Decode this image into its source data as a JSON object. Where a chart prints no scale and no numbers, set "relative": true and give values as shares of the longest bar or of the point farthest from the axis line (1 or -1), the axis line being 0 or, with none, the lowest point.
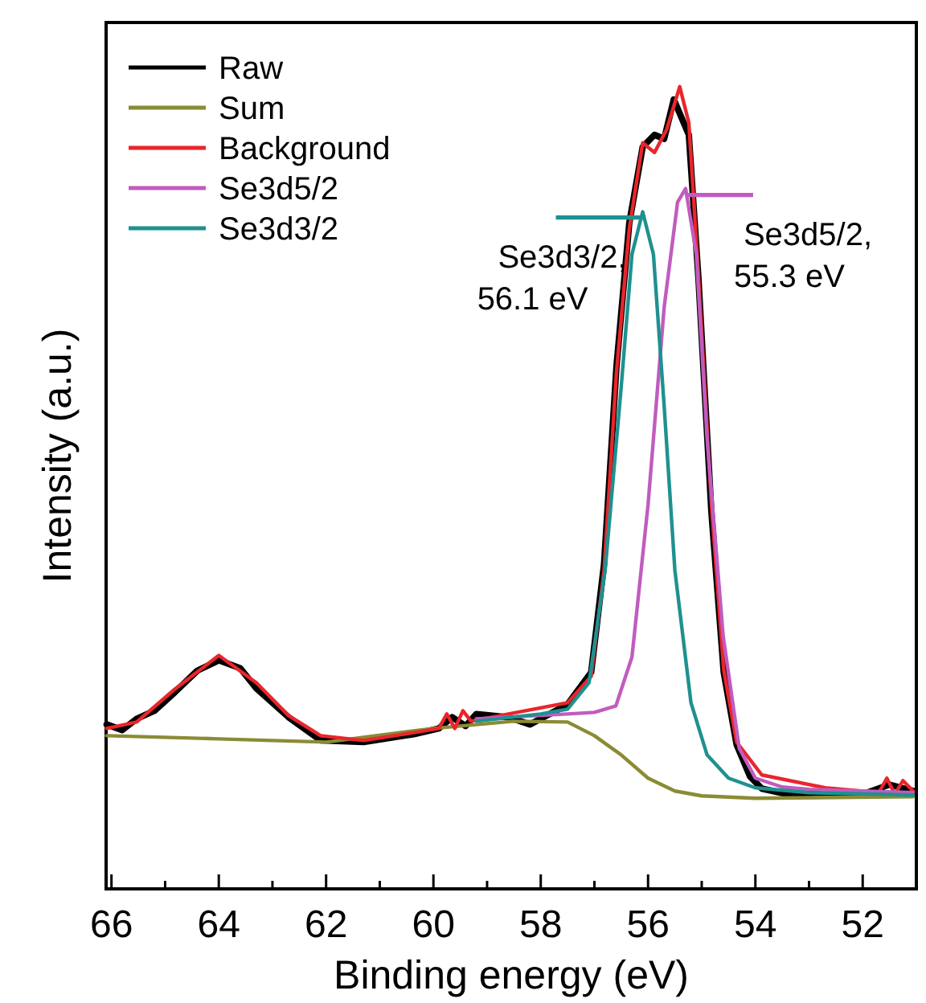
{
  "chart_data": {
    "type": "line",
    "relative": true,
    "xlabel": "Binding energy (eV)",
    "ylabel": "Intensity (a.u.)",
    "xlim": [
      66.1,
      51
    ],
    "xticks": [
      66,
      {
        "value": 65,
        "label": null
      },
      64,
      {
        "value": 63,
        "label": null
      },
      62,
      {
        "value": 61,
        "label": null
      },
      60,
      {
        "value": 59,
        "label": null
      },
      58,
      {
        "value": 57,
        "label": null
      },
      56,
      {
        "value": 55,
        "label": null
      },
      54,
      {
        "value": 53,
        "label": null
      },
      52
    ],
    "legend": "top left",
    "grid": false,
    "line_style": "solid",
    "marker": "none",
    "series": [
      {
        "name": "Raw",
        "color": "#000000",
        "x": [
          66.09,
          65.8,
          65.53,
          65.2,
          64.82,
          64.4,
          64.0,
          63.6,
          63.3,
          62.7,
          62.1,
          61.3,
          60.35,
          59.9,
          59.65,
          59.4,
          59.2,
          58.6,
          58.2,
          57.5,
          57.06,
          56.82,
          56.59,
          56.35,
          56.1,
          55.88,
          55.7,
          55.52,
          55.24,
          55.06,
          54.82,
          54.59,
          54.35,
          54.1,
          53.88,
          53.4,
          52.7,
          52.0,
          51.5,
          51.06
        ],
        "values": [
          0.205,
          0.198,
          0.212,
          0.222,
          0.245,
          0.272,
          0.285,
          0.275,
          0.25,
          0.214,
          0.185,
          0.183,
          0.193,
          0.2,
          0.214,
          0.203,
          0.218,
          0.214,
          0.205,
          0.23,
          0.27,
          0.405,
          0.65,
          0.83,
          0.925,
          0.94,
          0.935,
          0.984,
          0.94,
          0.76,
          0.47,
          0.27,
          0.18,
          0.14,
          0.125,
          0.118,
          0.12,
          0.118,
          0.13,
          0.122
        ]
      },
      {
        "name": "Sum",
        "color": "#8b8b35",
        "x": [
          66.09,
          64,
          62,
          60,
          58.5,
          57.5,
          57,
          56.5,
          56,
          55.5,
          55,
          54,
          52.5,
          51.06
        ],
        "values": [
          0.191,
          0.187,
          0.183,
          0.2,
          0.209,
          0.208,
          0.191,
          0.167,
          0.138,
          0.122,
          0.116,
          0.113,
          0.114,
          0.115
        ]
      },
      {
        "name": "Background",
        "color": "#e8262c",
        "x": [
          66.09,
          65.53,
          64.82,
          64.0,
          63.3,
          62.7,
          62.1,
          61.3,
          60.35,
          59.9,
          59.75,
          59.6,
          59.45,
          59.3,
          58.6,
          57.5,
          57.06,
          56.82,
          56.59,
          56.35,
          56.1,
          55.88,
          55.65,
          55.41,
          55.24,
          55.06,
          54.82,
          54.59,
          54.35,
          53.88,
          52.7,
          51.7,
          51.55,
          51.4,
          51.25,
          51.06
        ],
        "values": [
          0.2,
          0.208,
          0.249,
          0.291,
          0.257,
          0.216,
          0.191,
          0.185,
          0.195,
          0.2,
          0.218,
          0.2,
          0.222,
          0.209,
          0.218,
          0.232,
          0.265,
          0.397,
          0.643,
          0.823,
          0.93,
          0.918,
          0.947,
          1.0,
          0.955,
          0.765,
          0.479,
          0.273,
          0.183,
          0.142,
          0.126,
          0.12,
          0.138,
          0.118,
          0.135,
          0.122
        ]
      },
      {
        "name": "Se3d5/2",
        "color": "#c05cbf",
        "x": [
          59.2,
          57.5,
          57,
          56.6,
          56.3,
          56,
          55.7,
          55.45,
          55.3,
          55.1,
          54.9,
          54.6,
          54.3,
          54,
          53.5,
          53,
          51.06
        ],
        "values": [
          0.212,
          0.218,
          0.22,
          0.228,
          0.289,
          0.479,
          0.725,
          0.856,
          0.873,
          0.791,
          0.561,
          0.315,
          0.175,
          0.138,
          0.127,
          0.124,
          0.12
        ]
      },
      {
        "name": "Se3d3/2",
        "color": "#1e9190",
        "x": [
          59.2,
          58,
          57.5,
          57.1,
          56.8,
          56.5,
          56.3,
          56.1,
          55.9,
          55.7,
          55.5,
          55.2,
          54.9,
          54.5,
          54,
          53,
          51.06
        ],
        "values": [
          0.209,
          0.218,
          0.224,
          0.257,
          0.397,
          0.626,
          0.791,
          0.844,
          0.791,
          0.602,
          0.397,
          0.232,
          0.167,
          0.138,
          0.126,
          0.12,
          0.117
        ]
      }
    ],
    "annotations": [
      {
        "text": "Se3d5/2, 55.3 eV",
        "x": 55.3,
        "y": 0.865
      },
      {
        "text": "Se3d3/2, 56.1 eV",
        "x": 56.1,
        "y": 0.837
      }
    ]
  }
}
